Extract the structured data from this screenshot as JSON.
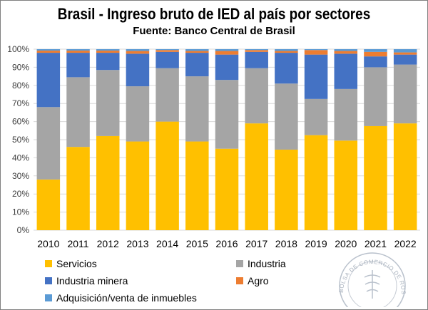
{
  "header": {
    "title": "Brasil - Ingreso bruto de IED al país por sectores",
    "subtitle": "Fuente: Banco Central de Brasil"
  },
  "watermark": {
    "text": "BOLSA DE COMERCIO DE ROSARIO"
  },
  "chart_data": {
    "type": "bar",
    "stacked": true,
    "percent": true,
    "categories": [
      "2010",
      "2011",
      "2012",
      "2013",
      "2014",
      "2015",
      "2016",
      "2017",
      "2018",
      "2019",
      "2020",
      "2021",
      "2022"
    ],
    "y_ticks": [
      "0%",
      "10%",
      "20%",
      "30%",
      "40%",
      "50%",
      "60%",
      "70%",
      "80%",
      "90%",
      "100%"
    ],
    "ylim": [
      0,
      100
    ],
    "grid": true,
    "legend_position": "bottom",
    "series": [
      {
        "name": "Servicios",
        "color": "#FFC000",
        "values": [
          28,
          46,
          52,
          49,
          60,
          49,
          45,
          59,
          44.5,
          52.5,
          49.5,
          57.5,
          59
        ]
      },
      {
        "name": "Industria",
        "color": "#A5A5A5",
        "values": [
          40,
          38.5,
          36.5,
          30.5,
          29.5,
          36,
          38,
          30.5,
          36.5,
          20,
          28.5,
          32.5,
          32.5
        ]
      },
      {
        "name": "Industria minera",
        "color": "#4472C4",
        "values": [
          30,
          13.5,
          9.5,
          18,
          9,
          13,
          14,
          9,
          17,
          24.5,
          19.5,
          6,
          5.5
        ]
      },
      {
        "name": "Agro",
        "color": "#ED7D31",
        "values": [
          1.2,
          1.2,
          1.2,
          1.5,
          1,
          1,
          2,
          1,
          1,
          2.5,
          1.5,
          2.5,
          1.2
        ]
      },
      {
        "name": "Adquisición/venta de inmuebles",
        "color": "#5B9BD5",
        "values": [
          0.8,
          0.8,
          0.8,
          1,
          0.5,
          1,
          1,
          0.5,
          1,
          0.5,
          1,
          1.5,
          1.8
        ]
      }
    ]
  }
}
